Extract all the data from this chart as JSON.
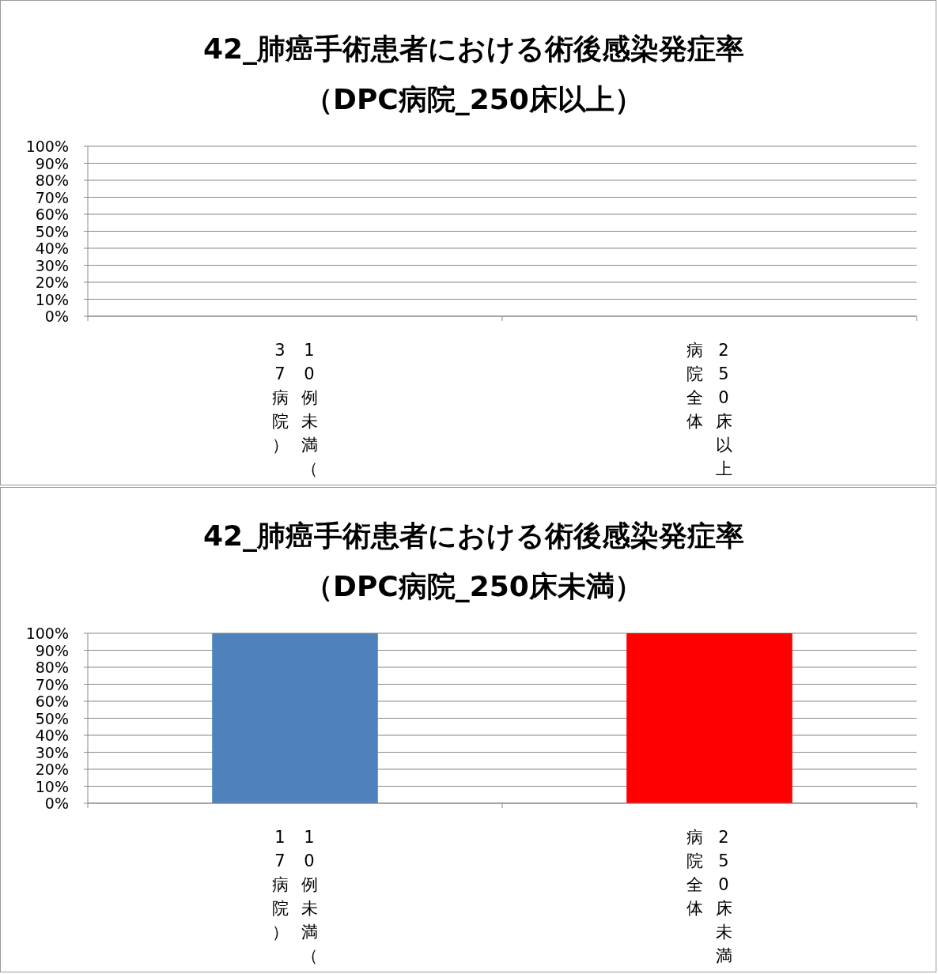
{
  "chart_data": [
    {
      "type": "bar",
      "title": "42_肺癌手術患者における術後感染発症率",
      "subtitle": "（DPC病院_250床以上）",
      "categories": [
        "10例未満（37病院）",
        "250床以上病院全体"
      ],
      "values": [
        null,
        null
      ],
      "colors": [
        "#4f81bd",
        "#ff0000"
      ],
      "ylim": [
        0,
        100
      ],
      "yticks": [
        {
          "value": 0,
          "label": "0%"
        },
        {
          "value": 10,
          "label": "10%"
        },
        {
          "value": 20,
          "label": "20%"
        },
        {
          "value": 30,
          "label": "30%"
        },
        {
          "value": 40,
          "label": "40%"
        },
        {
          "value": 50,
          "label": "50%"
        },
        {
          "value": 60,
          "label": "60%"
        },
        {
          "value": 70,
          "label": "70%"
        },
        {
          "value": 80,
          "label": "80%"
        },
        {
          "value": 90,
          "label": "90%"
        },
        {
          "value": 100,
          "label": "100%"
        }
      ],
      "grid": "y",
      "legend": false
    },
    {
      "type": "bar",
      "title": "42_肺癌手術患者における術後感染発症率",
      "subtitle": "（DPC病院_250床未満）",
      "categories": [
        "10例未満（17病院）",
        "250床未満病院全体"
      ],
      "values": [
        100,
        100
      ],
      "colors": [
        "#4f81bd",
        "#ff0000"
      ],
      "ylim": [
        0,
        100
      ],
      "yticks": [
        {
          "value": 0,
          "label": "0%"
        },
        {
          "value": 10,
          "label": "10%"
        },
        {
          "value": 20,
          "label": "20%"
        },
        {
          "value": 30,
          "label": "30%"
        },
        {
          "value": 40,
          "label": "40%"
        },
        {
          "value": 50,
          "label": "50%"
        },
        {
          "value": 60,
          "label": "60%"
        },
        {
          "value": 70,
          "label": "70%"
        },
        {
          "value": 80,
          "label": "80%"
        },
        {
          "value": 90,
          "label": "90%"
        },
        {
          "value": 100,
          "label": "100%"
        }
      ],
      "grid": "y",
      "legend": false
    }
  ]
}
